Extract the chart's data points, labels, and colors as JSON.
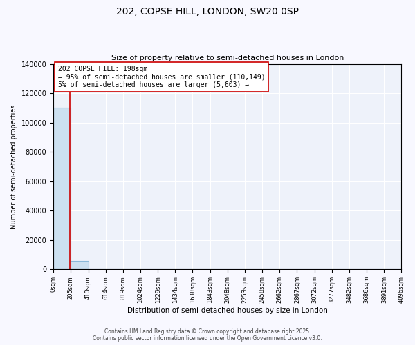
{
  "title": "202, COPSE HILL, LONDON, SW20 0SP",
  "subtitle": "Size of property relative to semi-detached houses in London",
  "xlabel": "Distribution of semi-detached houses by size in London",
  "ylabel": "Number of semi-detached properties",
  "bar_edges": [
    0,
    205,
    410,
    614,
    819,
    1024,
    1229,
    1434,
    1638,
    1843,
    2048,
    2253,
    2458,
    2662,
    2867,
    3072,
    3277,
    3482,
    3686,
    3891,
    4096
  ],
  "bar_heights": [
    110149,
    5603,
    0,
    0,
    0,
    0,
    0,
    0,
    0,
    0,
    0,
    0,
    0,
    0,
    0,
    0,
    0,
    0,
    0,
    0
  ],
  "bar_color": "#cce0f0",
  "bar_edgecolor": "#8ab8d8",
  "property_value": 198,
  "property_label": "202 COPSE HILL: 198sqm",
  "vline_color": "#cc0000",
  "annotation_line1": "202 COPSE HILL: 198sqm",
  "annotation_line2": "← 95% of semi-detached houses are smaller (110,149)",
  "annotation_line3": "5% of semi-detached houses are larger (5,603) →",
  "annotation_box_edgecolor": "#cc0000",
  "ylim": [
    0,
    140000
  ],
  "yticks": [
    0,
    20000,
    40000,
    60000,
    80000,
    100000,
    120000,
    140000
  ],
  "tick_labels": [
    "0sqm",
    "205sqm",
    "410sqm",
    "614sqm",
    "819sqm",
    "1024sqm",
    "1229sqm",
    "1434sqm",
    "1638sqm",
    "1843sqm",
    "2048sqm",
    "2253sqm",
    "2458sqm",
    "2662sqm",
    "2867sqm",
    "3072sqm",
    "3277sqm",
    "3482sqm",
    "3686sqm",
    "3891sqm",
    "4096sqm"
  ],
  "footer_line1": "Contains HM Land Registry data © Crown copyright and database right 2025.",
  "footer_line2": "Contains public sector information licensed under the Open Government Licence v3.0.",
  "bg_color": "#f8f8ff",
  "plot_bg_color": "#eef2fa"
}
